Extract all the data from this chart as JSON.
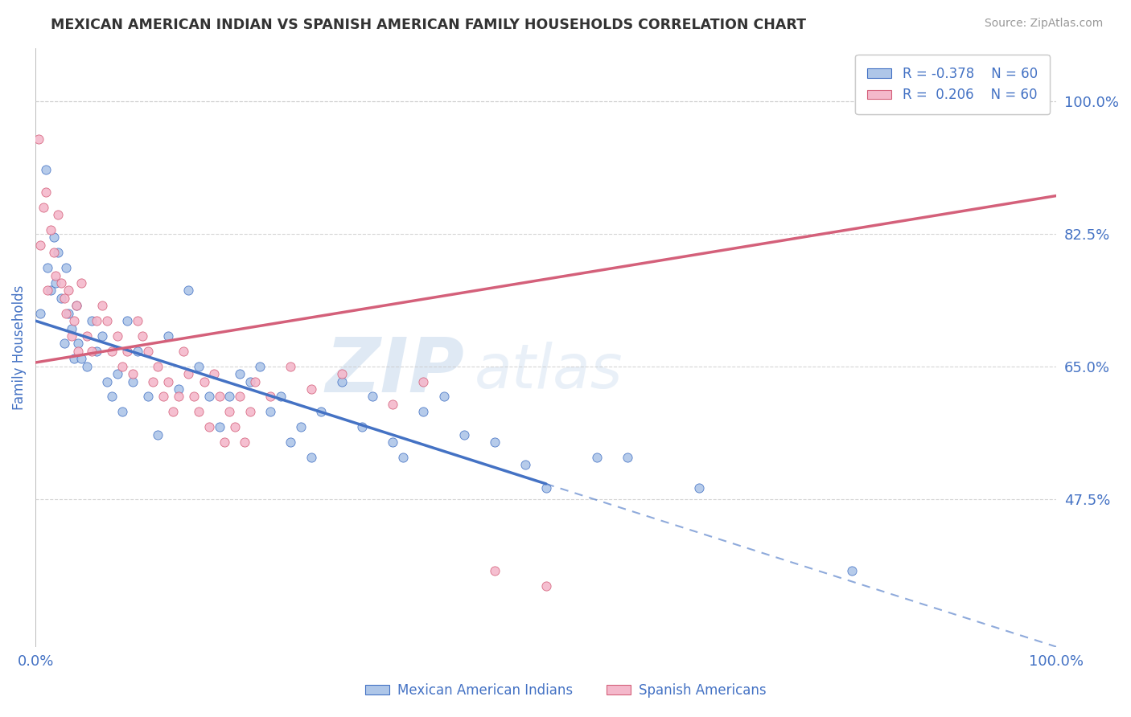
{
  "title": "MEXICAN AMERICAN INDIAN VS SPANISH AMERICAN FAMILY HOUSEHOLDS CORRELATION CHART",
  "source": "Source: ZipAtlas.com",
  "ylabel": "Family Households",
  "xlim": [
    0.0,
    100.0
  ],
  "ylim": [
    28.0,
    107.0
  ],
  "yticks": [
    47.5,
    65.0,
    82.5,
    100.0
  ],
  "xticks": [
    0.0,
    100.0
  ],
  "watermark_big": "ZIP",
  "watermark_small": "atlas",
  "blue_R": -0.378,
  "blue_N": 60,
  "pink_R": 0.206,
  "pink_N": 60,
  "blue_label": "Mexican American Indians",
  "pink_label": "Spanish Americans",
  "blue_scatter_color": "#aec6e8",
  "pink_scatter_color": "#f4b8cb",
  "blue_line_color": "#4472c4",
  "pink_line_color": "#d4607a",
  "background_color": "#ffffff",
  "grid_color": "#cccccc",
  "title_color": "#333333",
  "tick_label_color": "#4472c4",
  "blue_line_x0": 0.0,
  "blue_line_y0": 71.0,
  "blue_line_x1": 100.0,
  "blue_line_y1": 28.0,
  "blue_solid_x_end": 50.0,
  "pink_line_x0": 0.0,
  "pink_line_y0": 65.5,
  "pink_line_x1": 100.0,
  "pink_line_y1": 87.5,
  "blue_scatter": [
    [
      0.5,
      72
    ],
    [
      1.0,
      91
    ],
    [
      1.2,
      78
    ],
    [
      1.5,
      75
    ],
    [
      1.8,
      82
    ],
    [
      2.0,
      76
    ],
    [
      2.2,
      80
    ],
    [
      2.5,
      74
    ],
    [
      2.8,
      68
    ],
    [
      3.0,
      78
    ],
    [
      3.2,
      72
    ],
    [
      3.5,
      70
    ],
    [
      3.8,
      66
    ],
    [
      4.0,
      73
    ],
    [
      4.2,
      68
    ],
    [
      4.5,
      66
    ],
    [
      5.0,
      65
    ],
    [
      5.5,
      71
    ],
    [
      6.0,
      67
    ],
    [
      6.5,
      69
    ],
    [
      7.0,
      63
    ],
    [
      7.5,
      61
    ],
    [
      8.0,
      64
    ],
    [
      8.5,
      59
    ],
    [
      9.0,
      71
    ],
    [
      9.5,
      63
    ],
    [
      10.0,
      67
    ],
    [
      11.0,
      61
    ],
    [
      12.0,
      56
    ],
    [
      13.0,
      69
    ],
    [
      14.0,
      62
    ],
    [
      15.0,
      75
    ],
    [
      16.0,
      65
    ],
    [
      17.0,
      61
    ],
    [
      18.0,
      57
    ],
    [
      19.0,
      61
    ],
    [
      20.0,
      64
    ],
    [
      21.0,
      63
    ],
    [
      22.0,
      65
    ],
    [
      23.0,
      59
    ],
    [
      24.0,
      61
    ],
    [
      25.0,
      55
    ],
    [
      26.0,
      57
    ],
    [
      27.0,
      53
    ],
    [
      28.0,
      59
    ],
    [
      30.0,
      63
    ],
    [
      32.0,
      57
    ],
    [
      33.0,
      61
    ],
    [
      35.0,
      55
    ],
    [
      36.0,
      53
    ],
    [
      38.0,
      59
    ],
    [
      40.0,
      61
    ],
    [
      42.0,
      56
    ],
    [
      45.0,
      55
    ],
    [
      48.0,
      52
    ],
    [
      50.0,
      49
    ],
    [
      55.0,
      53
    ],
    [
      58.0,
      53
    ],
    [
      65.0,
      49
    ],
    [
      80.0,
      38
    ]
  ],
  "pink_scatter": [
    [
      0.3,
      95
    ],
    [
      0.5,
      81
    ],
    [
      0.8,
      86
    ],
    [
      1.0,
      88
    ],
    [
      1.2,
      75
    ],
    [
      1.5,
      83
    ],
    [
      1.8,
      80
    ],
    [
      2.0,
      77
    ],
    [
      2.2,
      85
    ],
    [
      2.5,
      76
    ],
    [
      2.8,
      74
    ],
    [
      3.0,
      72
    ],
    [
      3.2,
      75
    ],
    [
      3.5,
      69
    ],
    [
      3.8,
      71
    ],
    [
      4.0,
      73
    ],
    [
      4.2,
      67
    ],
    [
      4.5,
      76
    ],
    [
      5.0,
      69
    ],
    [
      5.5,
      67
    ],
    [
      6.0,
      71
    ],
    [
      6.5,
      73
    ],
    [
      7.0,
      71
    ],
    [
      7.5,
      67
    ],
    [
      8.0,
      69
    ],
    [
      8.5,
      65
    ],
    [
      9.0,
      67
    ],
    [
      9.5,
      64
    ],
    [
      10.0,
      71
    ],
    [
      10.5,
      69
    ],
    [
      11.0,
      67
    ],
    [
      11.5,
      63
    ],
    [
      12.0,
      65
    ],
    [
      12.5,
      61
    ],
    [
      13.0,
      63
    ],
    [
      13.5,
      59
    ],
    [
      14.0,
      61
    ],
    [
      14.5,
      67
    ],
    [
      15.0,
      64
    ],
    [
      15.5,
      61
    ],
    [
      16.0,
      59
    ],
    [
      16.5,
      63
    ],
    [
      17.0,
      57
    ],
    [
      17.5,
      64
    ],
    [
      18.0,
      61
    ],
    [
      18.5,
      55
    ],
    [
      19.0,
      59
    ],
    [
      19.5,
      57
    ],
    [
      20.0,
      61
    ],
    [
      20.5,
      55
    ],
    [
      21.0,
      59
    ],
    [
      21.5,
      63
    ],
    [
      23.0,
      61
    ],
    [
      25.0,
      65
    ],
    [
      27.0,
      62
    ],
    [
      30.0,
      64
    ],
    [
      35.0,
      60
    ],
    [
      38.0,
      63
    ],
    [
      45.0,
      38
    ],
    [
      50.0,
      36
    ]
  ]
}
